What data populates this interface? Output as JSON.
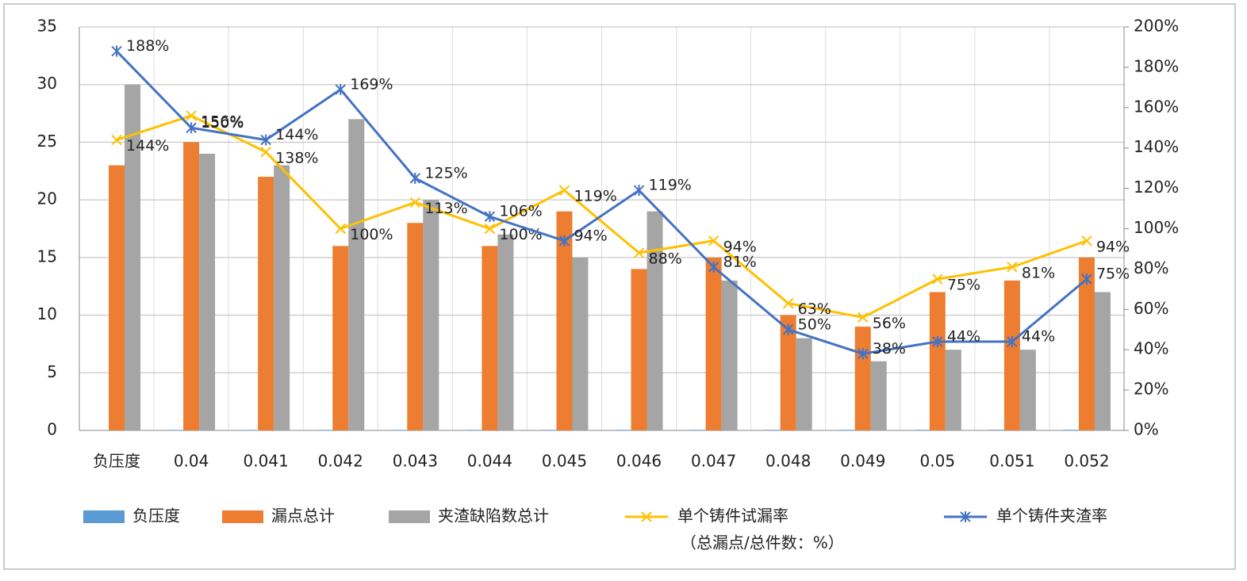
{
  "chart_data": {
    "type": "bar",
    "categories": [
      "负压度",
      "0.04",
      "0.041",
      "0.042",
      "0.043",
      "0.044",
      "0.045",
      "0.046",
      "0.047",
      "0.048",
      "0.049",
      "0.05",
      "0.051",
      "0.052"
    ],
    "series": [
      {
        "name": "负压度",
        "color": "#5b9bd5",
        "type": "bar",
        "values": [
          null,
          0.04,
          0.041,
          0.042,
          0.043,
          0.044,
          0.045,
          0.046,
          0.047,
          0.048,
          0.049,
          0.05,
          0.051,
          0.052
        ]
      },
      {
        "name": "漏点总计",
        "color": "#ed7d31",
        "type": "bar",
        "values": [
          23,
          25,
          22,
          16,
          18,
          16,
          19,
          14,
          15,
          10,
          9,
          12,
          13,
          15
        ]
      },
      {
        "name": "夹渣缺陷数总计",
        "color": "#a5a5a5",
        "type": "bar",
        "values": [
          30,
          24,
          23,
          27,
          20,
          17,
          15,
          19,
          13,
          8,
          6,
          7,
          7,
          12
        ]
      },
      {
        "name": "单个铸件试漏率",
        "color": "#ffc000",
        "type": "line",
        "marker": "x",
        "axis": "y2",
        "values": [
          144,
          156,
          138,
          100,
          113,
          100,
          119,
          88,
          94,
          63,
          56,
          75,
          81,
          94
        ],
        "value_labels": [
          "144%",
          "156%",
          "138%",
          "100%",
          "113%",
          "100%",
          "119%",
          "88%",
          "94%",
          "63%",
          "56%",
          "75%",
          "81%",
          "94%"
        ]
      },
      {
        "name": "单个铸件夹渣率",
        "color": "#4472c4",
        "type": "line",
        "marker": "star",
        "axis": "y2",
        "values": [
          188,
          150,
          144,
          169,
          125,
          106,
          94,
          119,
          81,
          50,
          38,
          44,
          44,
          75
        ],
        "value_labels": [
          "188%",
          "150%",
          "144%",
          "169%",
          "125%",
          "106%",
          "94%",
          "119%",
          "81%",
          "50%",
          "38%",
          "44%",
          "44%",
          "75%"
        ]
      }
    ],
    "legend_note": "（总漏点/总件数：%）",
    "ylim": [
      0,
      35
    ],
    "yticks": [
      0,
      5,
      10,
      15,
      20,
      25,
      30,
      35
    ],
    "y2lim": [
      0,
      200
    ],
    "y2ticks": [
      {
        "value": 0,
        "label": "0%"
      },
      {
        "value": 20,
        "label": "20%"
      },
      {
        "value": 40,
        "label": "40%"
      },
      {
        "value": 60,
        "label": "60%"
      },
      {
        "value": 80,
        "label": "80%"
      },
      {
        "value": 100,
        "label": "100%"
      },
      {
        "value": 120,
        "label": "120%"
      },
      {
        "value": 140,
        "label": "140%"
      },
      {
        "value": 160,
        "label": "160%"
      },
      {
        "value": 180,
        "label": "180%"
      },
      {
        "value": 200,
        "label": "200%"
      }
    ],
    "grid": true,
    "legend": "bottom"
  }
}
